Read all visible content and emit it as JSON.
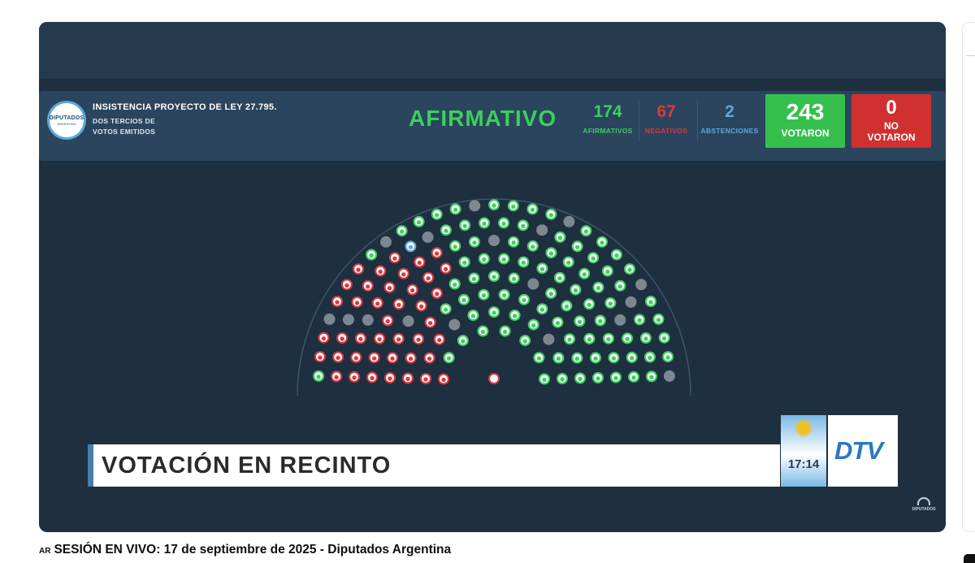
{
  "vote": {
    "title_line1": "INSISTENCIA PROYECTO DE LEY 27.795.",
    "title_line2": "DOS TERCIOS DE",
    "title_line3": "VOTOS EMITIDOS",
    "logo_line1": "DIPUTADOS",
    "logo_line2": "ARGENTINA",
    "result": "AFIRMATIVO",
    "afirmativos": {
      "value": "174",
      "label": "AFIRMATIVOS"
    },
    "negativos": {
      "value": "67",
      "label": "NEGATIVOS"
    },
    "abstenciones": {
      "value": "2",
      "label": "ABSTENCIONES"
    },
    "votaron": {
      "value": "243",
      "label": "VOTARON"
    },
    "no_votaron": {
      "value": "0",
      "label_line1": "NO",
      "label_line2": "VOTARON"
    },
    "colors": {
      "afirmativo": "#3ccf5e",
      "negativo": "#d9393e",
      "abstencion": "#5aa8e0",
      "ausente": "#7d8790"
    }
  },
  "hemicycle": {
    "total_seats": 257,
    "legend_icons": [
      "seat-afirmativo-icon",
      "seat-negativo-icon",
      "seat-abstencion-icon",
      "seat-vacant-icon"
    ]
  },
  "lower_third": {
    "text": "VOTACIÓN EN RECINTO",
    "clock": "17:14",
    "channel_logo": "DTV"
  },
  "watermark": {
    "text": "DIPUTADOS"
  },
  "caption": {
    "country_code": "AR",
    "title": "SESIÓN EN VIVO: 17 de septiembre de 2025 - Diputados Argentina"
  }
}
